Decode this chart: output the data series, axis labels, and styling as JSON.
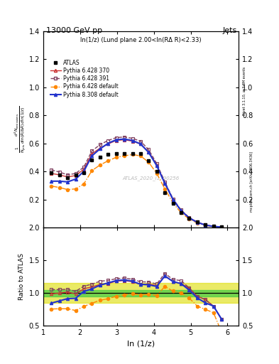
{
  "title": "13000 GeV pp",
  "title_right": "Jets",
  "subplot_title": "ln(1/z) (Lund plane 2.00<ln(RΔ R)<2.33)",
  "watermark": "ATLAS_2020_I1790256",
  "right_label_top": "Rivet 3.1.10, ≥ 3.3M events",
  "right_label_bottom": "mcplots.cern.ch [arXiv:1306.3436]",
  "ylabel_main": "$\\frac{1}{N_{\\mathrm{jets}}}\\frac{d^2 N_{\\mathrm{emissions}}}{d\\ln(R/\\Delta R)\\,d\\ln(1/z)}$",
  "ylabel_ratio": "Ratio to ATLAS",
  "xlabel": "ln (1/z)",
  "xlim": [
    1.0,
    6.3
  ],
  "ylim_main": [
    0.0,
    1.4
  ],
  "ylim_ratio": [
    0.5,
    2.0
  ],
  "x_atlas": [
    1.22,
    1.44,
    1.66,
    1.88,
    2.1,
    2.32,
    2.54,
    2.76,
    2.98,
    3.2,
    3.42,
    3.64,
    3.86,
    4.08,
    4.3,
    4.52,
    4.74,
    4.96,
    5.18,
    5.4,
    5.62,
    5.84
  ],
  "y_atlas": [
    0.39,
    0.375,
    0.355,
    0.375,
    0.39,
    0.48,
    0.5,
    0.52,
    0.525,
    0.525,
    0.525,
    0.525,
    0.475,
    0.4,
    0.25,
    0.17,
    0.105,
    0.065,
    0.04,
    0.02,
    0.01,
    0.005
  ],
  "x_mc": [
    1.22,
    1.44,
    1.66,
    1.88,
    2.1,
    2.32,
    2.54,
    2.76,
    2.98,
    3.2,
    3.42,
    3.64,
    3.86,
    4.08,
    4.3,
    4.52,
    4.74,
    4.96,
    5.18,
    5.4,
    5.62,
    5.84
  ],
  "y_p6_370": [
    0.385,
    0.375,
    0.36,
    0.37,
    0.415,
    0.525,
    0.565,
    0.595,
    0.62,
    0.625,
    0.615,
    0.595,
    0.54,
    0.445,
    0.315,
    0.2,
    0.12,
    0.07,
    0.038,
    0.018,
    0.008,
    0.003
  ],
  "y_p6_391": [
    0.41,
    0.395,
    0.375,
    0.385,
    0.43,
    0.545,
    0.59,
    0.62,
    0.64,
    0.645,
    0.635,
    0.615,
    0.555,
    0.455,
    0.325,
    0.205,
    0.125,
    0.07,
    0.038,
    0.018,
    0.008,
    0.003
  ],
  "y_p6_def": [
    0.295,
    0.285,
    0.27,
    0.275,
    0.31,
    0.405,
    0.445,
    0.475,
    0.5,
    0.51,
    0.52,
    0.51,
    0.465,
    0.385,
    0.275,
    0.175,
    0.105,
    0.06,
    0.032,
    0.015,
    0.007,
    0.002
  ],
  "y_p8_def": [
    0.33,
    0.33,
    0.325,
    0.345,
    0.4,
    0.51,
    0.56,
    0.6,
    0.625,
    0.63,
    0.62,
    0.595,
    0.535,
    0.44,
    0.315,
    0.2,
    0.12,
    0.068,
    0.037,
    0.017,
    0.008,
    0.003
  ],
  "color_p6_370": "#cc3333",
  "color_p6_391": "#7f3f5f",
  "color_p6_def": "#ff8800",
  "color_p8_def": "#2233cc",
  "green_band_inner": 0.05,
  "green_band_outer": 0.15,
  "ratio_p6_370": [
    0.987,
    1.0,
    1.014,
    0.987,
    1.064,
    1.094,
    1.13,
    1.144,
    1.181,
    1.19,
    1.171,
    1.133,
    1.137,
    1.113,
    1.26,
    1.176,
    1.143,
    1.077,
    0.95,
    0.9,
    0.8,
    0.6
  ],
  "ratio_p6_391": [
    1.051,
    1.053,
    1.056,
    1.027,
    1.103,
    1.135,
    1.18,
    1.192,
    1.219,
    1.229,
    1.21,
    1.171,
    1.168,
    1.138,
    1.3,
    1.206,
    1.19,
    1.077,
    0.95,
    0.9,
    0.8,
    0.6
  ],
  "ratio_p6_def": [
    0.756,
    0.76,
    0.76,
    0.733,
    0.795,
    0.844,
    0.89,
    0.913,
    0.952,
    0.971,
    0.99,
    0.971,
    0.979,
    0.963,
    1.1,
    1.029,
    1.0,
    0.923,
    0.8,
    0.75,
    0.7,
    0.4
  ],
  "ratio_p8_def": [
    0.846,
    0.88,
    0.915,
    0.92,
    1.026,
    1.063,
    1.12,
    1.154,
    1.19,
    1.2,
    1.181,
    1.133,
    1.126,
    1.1,
    1.26,
    1.176,
    1.143,
    1.046,
    0.925,
    0.85,
    0.8,
    0.6
  ]
}
